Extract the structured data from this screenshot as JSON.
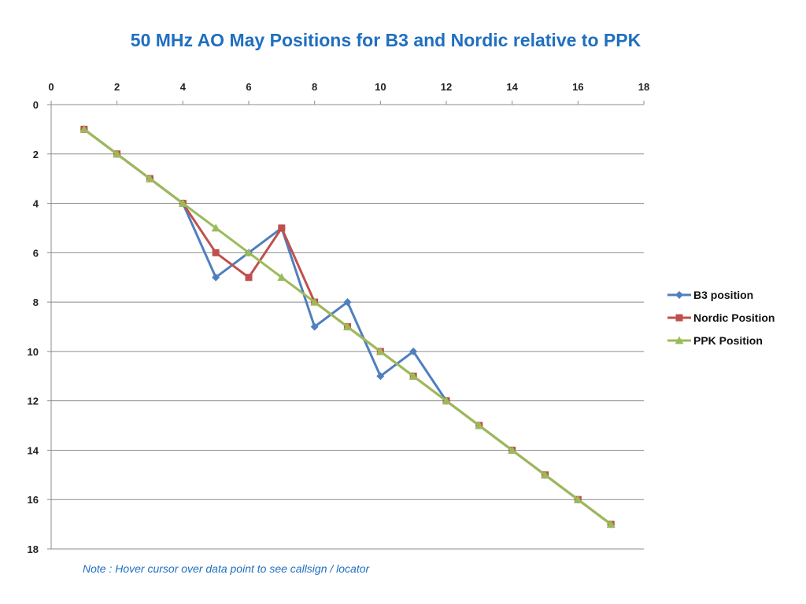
{
  "chart_data": {
    "type": "line",
    "title": "50 MHz AO May Positions for B3 and Nordic relative to PPK",
    "xlabel": "",
    "ylabel": "",
    "xlim": [
      0,
      18
    ],
    "ylim": [
      0,
      18
    ],
    "x_axis_position": "top",
    "y_axis_inverted": true,
    "x_ticks": [
      0,
      2,
      4,
      6,
      8,
      10,
      12,
      14,
      16,
      18
    ],
    "y_ticks": [
      0,
      2,
      4,
      6,
      8,
      10,
      12,
      14,
      16,
      18
    ],
    "grid": "horizontal",
    "legend_position": "right",
    "x": [
      1,
      2,
      3,
      4,
      5,
      6,
      7,
      8,
      9,
      10,
      11,
      12,
      13,
      14,
      15,
      16,
      17
    ],
    "series": [
      {
        "name": "B3 position",
        "color": "#4f7fbf",
        "marker": "diamond",
        "values": [
          1,
          2,
          3,
          4,
          7,
          6,
          5,
          9,
          8,
          11,
          10,
          12,
          13,
          14,
          15,
          16,
          17
        ]
      },
      {
        "name": "Nordic Position",
        "color": "#c0504d",
        "marker": "square",
        "values": [
          1,
          2,
          3,
          4,
          6,
          7,
          5,
          8,
          9,
          10,
          11,
          12,
          13,
          14,
          15,
          16,
          17
        ]
      },
      {
        "name": "PPK Position",
        "color": "#9bbb59",
        "marker": "triangle",
        "values": [
          1,
          2,
          3,
          4,
          5,
          6,
          7,
          8,
          9,
          10,
          11,
          12,
          13,
          14,
          15,
          16,
          17
        ]
      }
    ]
  },
  "note": "Note : Hover cursor over data point to see callsign / locator"
}
